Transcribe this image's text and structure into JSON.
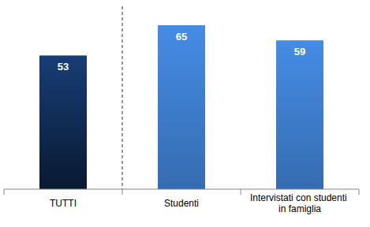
{
  "chart_data": {
    "type": "bar",
    "categories": [
      "TUTTI",
      "Studenti",
      "Intervistati con studenti in famiglia"
    ],
    "values": [
      53,
      65,
      59
    ],
    "colors": [
      "#15386b",
      "#3f7fd0",
      "#3f7fd0"
    ],
    "ylim": [
      0,
      75
    ],
    "data_labels": true,
    "tick_labels": "x",
    "grid": false
  }
}
